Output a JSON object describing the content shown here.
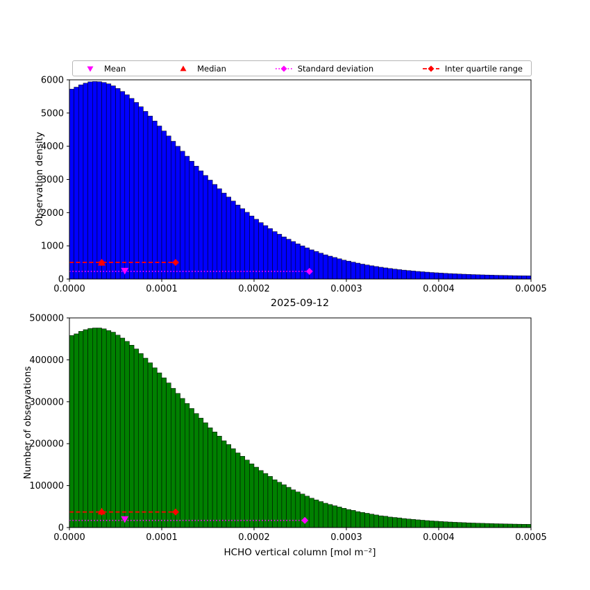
{
  "title": "2025-09-12",
  "colors": {
    "top_bar": "#0000ff",
    "bottom_bar": "#008000",
    "bar_edge": "#000000",
    "mean": "#ff00ff",
    "median": "#ff0000",
    "std": "#ff00ff",
    "iqr": "#ff0000"
  },
  "legend": {
    "items": [
      {
        "label": "Mean",
        "marker": "triangle-down",
        "color": "#ff00ff",
        "line": "none"
      },
      {
        "label": "Median",
        "marker": "triangle-up",
        "color": "#ff0000",
        "line": "none"
      },
      {
        "label": "Standard deviation",
        "marker": "diamond",
        "color": "#ff00ff",
        "line": "dotted"
      },
      {
        "label": "Inter quartile range",
        "marker": "diamond",
        "color": "#ff0000",
        "line": "dashed"
      }
    ]
  },
  "chart_data": [
    {
      "type": "bar",
      "title": "",
      "xlabel": "",
      "ylabel": "Observation density",
      "xlim": [
        0,
        0.0005
      ],
      "ylim": [
        0,
        6000
      ],
      "xticks": [
        0,
        0.0001,
        0.0002,
        0.0003,
        0.0004,
        0.0005
      ],
      "xticklabels": [
        "0.0000",
        "0.0001",
        "0.0002",
        "0.0003",
        "0.0004",
        "0.0005"
      ],
      "yticks": [
        0,
        1000,
        2000,
        3000,
        4000,
        5000,
        6000
      ],
      "yticklabels": [
        "0",
        "1000",
        "2000",
        "3000",
        "4000",
        "5000",
        "6000"
      ],
      "bar_color": "#0000ff",
      "bar_edge": "#000000",
      "bin_start": 0,
      "bin_width": 5e-06,
      "values": [
        5720,
        5780,
        5850,
        5900,
        5940,
        5950,
        5945,
        5920,
        5880,
        5820,
        5740,
        5650,
        5550,
        5440,
        5320,
        5190,
        5050,
        4910,
        4760,
        4610,
        4460,
        4310,
        4150,
        4000,
        3850,
        3700,
        3550,
        3400,
        3260,
        3120,
        2980,
        2850,
        2720,
        2590,
        2470,
        2350,
        2230,
        2120,
        2010,
        1900,
        1800,
        1700,
        1610,
        1520,
        1430,
        1350,
        1270,
        1200,
        1130,
        1060,
        1000,
        940,
        880,
        830,
        780,
        730,
        690,
        650,
        610,
        570,
        540,
        510,
        480,
        450,
        425,
        400,
        378,
        356,
        336,
        318,
        300,
        284,
        269,
        255,
        242,
        230,
        219,
        208,
        198,
        189,
        180,
        172,
        165,
        158,
        152,
        146,
        140,
        135,
        130,
        126,
        122,
        118,
        114,
        111,
        108,
        105,
        102,
        100,
        98,
        96
      ],
      "markers": {
        "mean": {
          "x": 6e-05,
          "y": 250,
          "color": "#ff00ff"
        },
        "median": {
          "x": 3.5e-05,
          "y": 490,
          "color": "#ff0000"
        },
        "std": {
          "x1": 0,
          "x2": 0.00026,
          "y": 230,
          "caps": [
            0.00026
          ],
          "color": "#ff00ff",
          "style": "dotted"
        },
        "iqr": {
          "x1": 0,
          "x2": 0.000115,
          "y": 500,
          "caps": [
            3.5e-05,
            0.000115
          ],
          "color": "#ff0000",
          "style": "dashed"
        }
      }
    },
    {
      "type": "bar",
      "title": "2025-09-12",
      "xlabel": "HCHO vertical column [mol m⁻²]",
      "ylabel": "Number of observations",
      "xlim": [
        0,
        0.0005
      ],
      "ylim": [
        0,
        500000
      ],
      "xticks": [
        0,
        0.0001,
        0.0002,
        0.0003,
        0.0004,
        0.0005
      ],
      "xticklabels": [
        "0.0000",
        "0.0001",
        "0.0002",
        "0.0003",
        "0.0004",
        "0.0005"
      ],
      "yticks": [
        0,
        100000,
        200000,
        300000,
        400000,
        500000
      ],
      "yticklabels": [
        "0",
        "100000",
        "200000",
        "300000",
        "400000",
        "500000"
      ],
      "bar_color": "#008000",
      "bar_edge": "#000000",
      "bin_start": 0,
      "bin_width": 5e-06,
      "values": [
        458000,
        462000,
        468000,
        472000,
        475000,
        476000,
        476000,
        474000,
        470000,
        466000,
        459000,
        452000,
        444000,
        435000,
        426000,
        415000,
        404000,
        393000,
        381000,
        369000,
        357000,
        345000,
        332000,
        320000,
        308000,
        296000,
        284000,
        272000,
        261000,
        250000,
        238000,
        228000,
        218000,
        207000,
        198000,
        188000,
        178000,
        170000,
        161000,
        152000,
        144000,
        136000,
        129000,
        122000,
        114000,
        108000,
        102000,
        96000,
        90000,
        85000,
        80000,
        75000,
        70000,
        66000,
        62000,
        58000,
        55000,
        52000,
        49000,
        46000,
        43000,
        41000,
        38000,
        36000,
        34000,
        32000,
        30000,
        28000,
        27000,
        25000,
        24000,
        23000,
        21500,
        20400,
        19400,
        18400,
        17500,
        16600,
        15800,
        15100,
        14400,
        13800,
        13200,
        12600,
        12200,
        11700,
        11200,
        10800,
        10400,
        10100,
        9800,
        9400,
        9100,
        8900,
        8600,
        8400,
        8200,
        8000,
        7800,
        7700
      ],
      "markers": {
        "mean": {
          "x": 6e-05,
          "y": 20000,
          "color": "#ff00ff"
        },
        "median": {
          "x": 3.5e-05,
          "y": 38000,
          "color": "#ff0000"
        },
        "std": {
          "x1": 0,
          "x2": 0.000255,
          "y": 17000,
          "caps": [
            0.000255
          ],
          "color": "#ff00ff",
          "style": "dotted"
        },
        "iqr": {
          "x1": 0,
          "x2": 0.000115,
          "y": 37000,
          "caps": [
            3.5e-05,
            0.000115
          ],
          "color": "#ff0000",
          "style": "dashed"
        }
      }
    }
  ]
}
